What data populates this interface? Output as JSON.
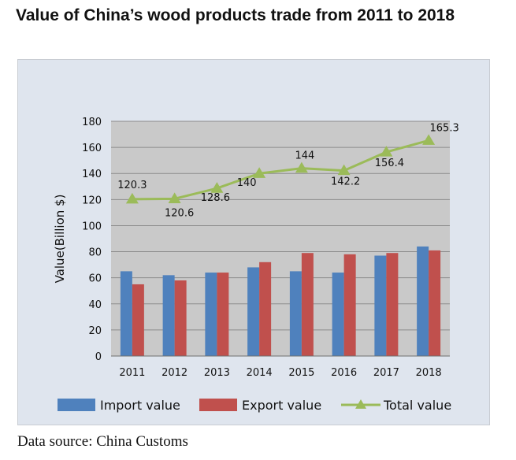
{
  "title": "Value of China’s wood products trade from 2011 to 2018",
  "source": "Data source: China Customs",
  "chart_data": {
    "type": "bar",
    "categories": [
      "2011",
      "2012",
      "2013",
      "2014",
      "2015",
      "2016",
      "2017",
      "2018"
    ],
    "ylabel": "Value(Billion $)",
    "xlabel": "",
    "ylim": [
      0,
      180
    ],
    "yticks": [
      0,
      20,
      40,
      60,
      80,
      100,
      120,
      140,
      160,
      180
    ],
    "grid": true,
    "legend_position": "bottom",
    "series": [
      {
        "name": "Import value",
        "type": "bar",
        "color": "#4f81bd",
        "values": [
          65,
          62,
          64,
          68,
          65,
          64,
          77,
          84
        ]
      },
      {
        "name": "Export value",
        "type": "bar",
        "color": "#c0504d",
        "values": [
          55,
          58,
          64,
          72,
          79,
          78,
          79,
          81
        ]
      },
      {
        "name": "Total value",
        "type": "line",
        "marker": "triangle",
        "color": "#9bbb59",
        "values": [
          120.3,
          120.6,
          128.6,
          140,
          144,
          142.2,
          156.4,
          165.3
        ],
        "data_labels": [
          "120.3",
          "120.6",
          "128.6",
          "140",
          "144",
          "142.2",
          "156.4",
          "165.3"
        ]
      }
    ]
  }
}
